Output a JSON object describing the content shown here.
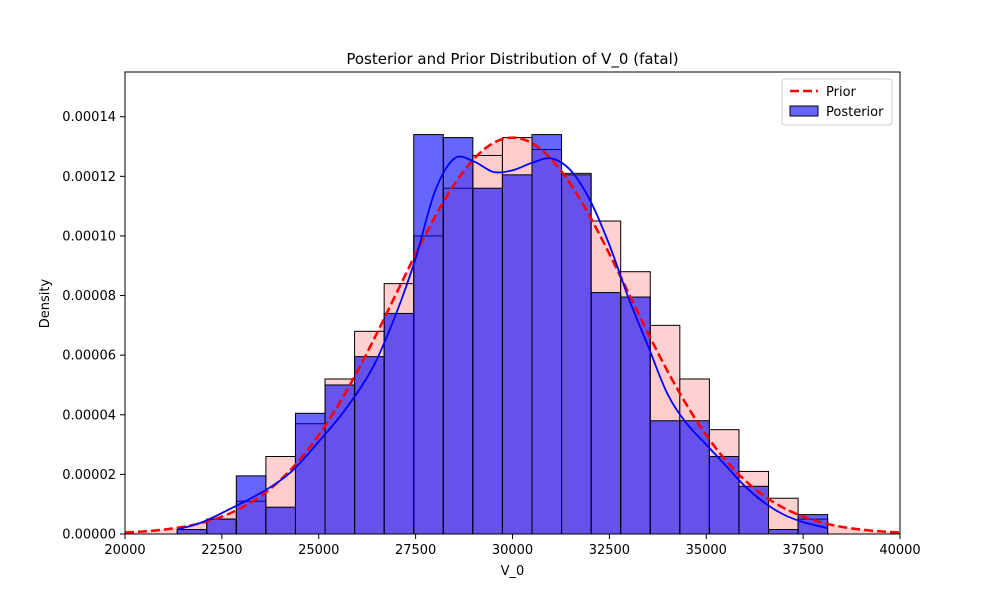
{
  "chart_data": {
    "type": "histogram",
    "title": "Posterior and Prior Distribution of V_0 (fatal)",
    "xlabel": "V_0",
    "ylabel": "Density",
    "xlim": [
      20000,
      40000
    ],
    "ylim": [
      0,
      0.000155
    ],
    "x_ticks": [
      20000,
      22500,
      25000,
      27500,
      30000,
      32500,
      35000,
      37500,
      40000
    ],
    "x_tick_labels": [
      "20000",
      "22500",
      "25000",
      "27500",
      "30000",
      "32500",
      "35000",
      "37500",
      "40000"
    ],
    "y_ticks": [
      0,
      2e-05,
      4e-05,
      6e-05,
      8e-05,
      0.0001,
      0.00012,
      0.00014
    ],
    "y_tick_labels": [
      "0.00000",
      "0.00002",
      "0.00004",
      "0.00006",
      "0.00008",
      "0.00010",
      "0.00012",
      "0.00014"
    ],
    "grid": false,
    "legend_position": "top-right",
    "legend": [
      {
        "label": "Prior",
        "style": "dashed-line",
        "color": "#ff0000"
      },
      {
        "label": "Posterior",
        "style": "patch",
        "color": "#6666ff"
      }
    ],
    "bins": {
      "start": 21347,
      "width": 763,
      "count": 22
    },
    "series": [
      {
        "name": "Prior",
        "kind": "histogram-and-kde",
        "bar_color": "#ffcccc",
        "line_color": "#ff0000",
        "line_style": "dashed",
        "values": [
          1.5e-06,
          5e-06,
          1.1e-05,
          2.6e-05,
          3.7e-05,
          5.2e-05,
          6.8e-05,
          8.4e-05,
          0.0001,
          0.000116,
          0.000127,
          0.000133,
          0.000129,
          0.000121,
          0.000105,
          8.8e-05,
          7e-05,
          5.2e-05,
          3.5e-05,
          2.1e-05,
          1.2e-05,
          5e-06
        ],
        "kde": {
          "mean": 30000,
          "std": 3000
        }
      },
      {
        "name": "Posterior",
        "kind": "histogram-and-kde",
        "bar_color": "#6666ff",
        "line_color": "#0000ff",
        "line_style": "solid",
        "values": [
          1.5e-06,
          5e-06,
          1.95e-05,
          9e-06,
          4.05e-05,
          5e-05,
          5.95e-05,
          7.4e-05,
          0.000134,
          0.000133,
          0.000116,
          0.0001205,
          0.000134,
          0.0001205,
          8.1e-05,
          7.95e-05,
          3.8e-05,
          3.8e-05,
          2.6e-05,
          1.6e-05,
          1.5e-06,
          6.5e-06
        ],
        "kde": {
          "x": [
            21347,
            22000,
            22800,
            23600,
            24300,
            25000,
            25700,
            26400,
            27000,
            27500,
            28000,
            28500,
            29000,
            29500,
            30000,
            30500,
            31000,
            31500,
            32000,
            32500,
            33000,
            33500,
            34000,
            34500,
            35000,
            35500,
            36000,
            36500,
            37000,
            37500,
            38133
          ],
          "y": [
            1.5e-06,
            4e-06,
            9e-06,
            1.45e-05,
            2.1e-05,
            3.1e-05,
            4.2e-05,
            5.6e-05,
            7.4e-05,
            9.25e-05,
            0.000115,
            0.000126,
            0.000125,
            0.0001215,
            0.000122,
            0.0001245,
            0.000126,
            0.000122,
            0.000112,
            9.7e-05,
            7.9e-05,
            6.3e-05,
            4.7e-05,
            3.7e-05,
            3e-05,
            2.3e-05,
            1.6e-05,
            1.05e-05,
            6.5e-06,
            4e-06,
            2e-06
          ]
        }
      }
    ]
  }
}
